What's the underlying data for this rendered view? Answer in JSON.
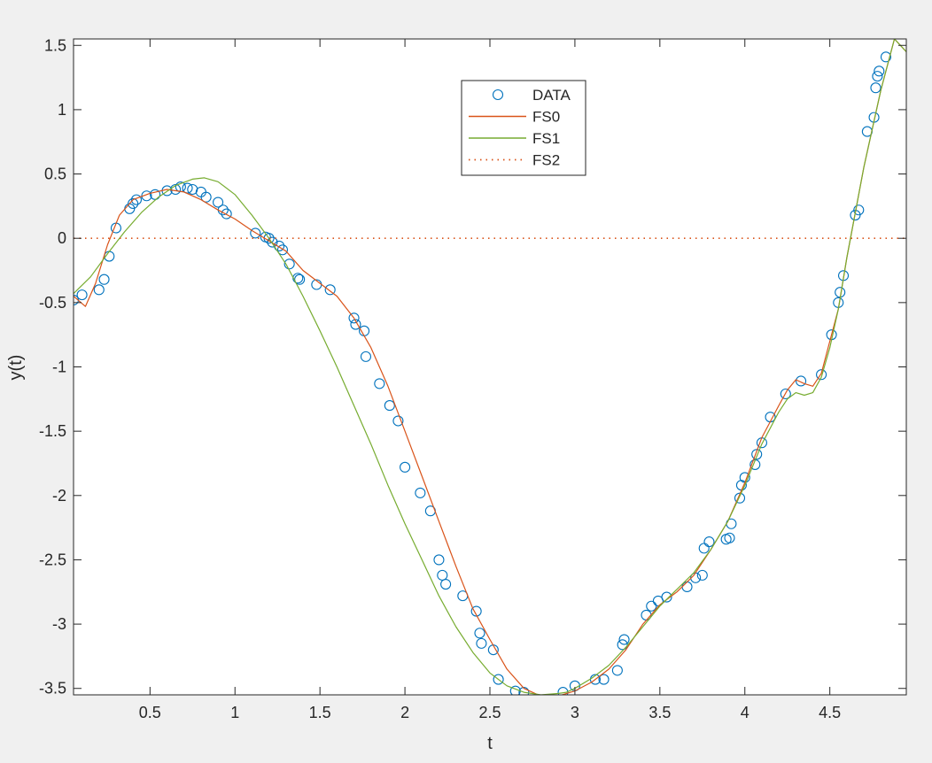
{
  "chart_data": {
    "type": "line",
    "title": "",
    "xlabel": "t",
    "ylabel": "y(t)",
    "xlim": [
      0.05,
      4.95
    ],
    "ylim": [
      -3.55,
      1.55
    ],
    "xticks": [
      "0.5",
      "1",
      "1.5",
      "2",
      "2.5",
      "3",
      "3.5",
      "4",
      "4.5"
    ],
    "xtick_values": [
      0.5,
      1,
      1.5,
      2,
      2.5,
      3,
      3.5,
      4,
      4.5
    ],
    "yticks": [
      "1.5",
      "1",
      "0.5",
      "0",
      "-0.5",
      "-1",
      "-1.5",
      "-2",
      "-2.5",
      "-3",
      "-3.5"
    ],
    "ytick_values": [
      1.5,
      1,
      0.5,
      0,
      -0.5,
      -1,
      -1.5,
      -2,
      -2.5,
      -3,
      -3.5
    ],
    "grid": false,
    "legend_position": "top-center",
    "series": [
      {
        "name": "DATA",
        "style": "markers",
        "marker": "circle",
        "color": "#0072BD",
        "x": [
          0.05,
          0.1,
          0.2,
          0.23,
          0.26,
          0.3,
          0.38,
          0.4,
          0.42,
          0.48,
          0.53,
          0.6,
          0.65,
          0.68,
          0.72,
          0.75,
          0.8,
          0.83,
          0.9,
          0.93,
          0.95,
          1.12,
          1.18,
          1.2,
          1.22,
          1.26,
          1.28,
          1.32,
          1.37,
          1.38,
          1.48,
          1.56,
          1.7,
          1.71,
          1.76,
          1.77,
          1.85,
          1.91,
          1.96,
          2.0,
          2.09,
          2.15,
          2.2,
          2.22,
          2.24,
          2.34,
          2.42,
          2.44,
          2.45,
          2.52,
          2.55,
          2.65,
          2.7,
          2.93,
          3.0,
          3.12,
          3.17,
          3.25,
          3.28,
          3.29,
          3.42,
          3.45,
          3.49,
          3.54,
          3.66,
          3.71,
          3.75,
          3.76,
          3.79,
          3.89,
          3.91,
          3.92,
          3.97,
          3.98,
          4.0,
          4.06,
          4.07,
          4.1,
          4.15,
          4.24,
          4.33,
          4.45,
          4.51,
          4.55,
          4.56,
          4.58,
          4.65,
          4.67,
          4.72,
          4.76,
          4.77,
          4.78,
          4.79,
          4.83
        ],
        "y": [
          -0.48,
          -0.44,
          -0.4,
          -0.32,
          -0.14,
          0.08,
          0.23,
          0.27,
          0.3,
          0.33,
          0.34,
          0.37,
          0.38,
          0.4,
          0.39,
          0.38,
          0.36,
          0.32,
          0.28,
          0.22,
          0.19,
          0.04,
          0.01,
          0.0,
          -0.03,
          -0.06,
          -0.09,
          -0.2,
          -0.31,
          -0.32,
          -0.36,
          -0.4,
          -0.62,
          -0.67,
          -0.72,
          -0.92,
          -1.13,
          -1.3,
          -1.42,
          -1.78,
          -1.98,
          -2.12,
          -2.5,
          -2.62,
          -2.69,
          -2.78,
          -2.9,
          -3.07,
          -3.15,
          -3.2,
          -3.43,
          -3.52,
          -3.53,
          -3.53,
          -3.48,
          -3.43,
          -3.43,
          -3.36,
          -3.16,
          -3.12,
          -2.93,
          -2.86,
          -2.82,
          -2.79,
          -2.71,
          -2.64,
          -2.62,
          -2.41,
          -2.36,
          -2.34,
          -2.33,
          -2.22,
          -2.02,
          -1.92,
          -1.86,
          -1.76,
          -1.68,
          -1.59,
          -1.39,
          -1.21,
          -1.11,
          -1.06,
          -0.75,
          -0.5,
          -0.42,
          -0.29,
          0.18,
          0.22,
          0.83,
          0.94,
          1.17,
          1.26,
          1.3,
          1.41
        ]
      },
      {
        "name": "FS0",
        "style": "line",
        "color": "#D95319",
        "x": [
          0.05,
          0.12,
          0.18,
          0.25,
          0.32,
          0.4,
          0.5,
          0.6,
          0.7,
          0.8,
          0.9,
          1.0,
          1.1,
          1.2,
          1.3,
          1.4,
          1.5,
          1.6,
          1.7,
          1.8,
          1.9,
          2.0,
          2.1,
          2.2,
          2.3,
          2.4,
          2.5,
          2.6,
          2.7,
          2.8,
          2.9,
          3.0,
          3.1,
          3.2,
          3.3,
          3.4,
          3.5,
          3.6,
          3.7,
          3.8,
          3.9,
          4.0,
          4.1,
          4.2,
          4.25,
          4.3,
          4.35,
          4.4,
          4.45,
          4.5,
          4.55,
          4.6,
          4.7,
          4.8,
          4.88,
          4.95
        ],
        "y": [
          -0.45,
          -0.53,
          -0.35,
          -0.05,
          0.18,
          0.3,
          0.35,
          0.38,
          0.36,
          0.3,
          0.22,
          0.15,
          0.06,
          -0.02,
          -0.1,
          -0.25,
          -0.35,
          -0.45,
          -0.62,
          -0.85,
          -1.15,
          -1.5,
          -1.85,
          -2.2,
          -2.55,
          -2.88,
          -3.12,
          -3.35,
          -3.5,
          -3.56,
          -3.56,
          -3.52,
          -3.45,
          -3.35,
          -3.2,
          -3.0,
          -2.85,
          -2.75,
          -2.62,
          -2.42,
          -2.2,
          -1.9,
          -1.55,
          -1.3,
          -1.18,
          -1.1,
          -1.13,
          -1.15,
          -1.05,
          -0.8,
          -0.55,
          -0.15,
          0.55,
          1.15,
          1.55,
          1.45
        ]
      },
      {
        "name": "FS1",
        "style": "line",
        "color": "#77AC30",
        "x": [
          0.05,
          0.15,
          0.25,
          0.35,
          0.45,
          0.55,
          0.65,
          0.75,
          0.82,
          0.9,
          1.0,
          1.1,
          1.2,
          1.3,
          1.4,
          1.5,
          1.6,
          1.7,
          1.8,
          1.9,
          2.0,
          2.1,
          2.2,
          2.3,
          2.4,
          2.5,
          2.6,
          2.7,
          2.8,
          2.9,
          2.95,
          3.0,
          3.1,
          3.2,
          3.3,
          3.4,
          3.5,
          3.6,
          3.7,
          3.8,
          3.9,
          4.0,
          4.1,
          4.2,
          4.25,
          4.3,
          4.35,
          4.4,
          4.45,
          4.5,
          4.55,
          4.6,
          4.7,
          4.8,
          4.88,
          4.95
        ],
        "y": [
          -0.43,
          -0.3,
          -0.12,
          0.05,
          0.2,
          0.32,
          0.41,
          0.46,
          0.47,
          0.44,
          0.34,
          0.18,
          0.0,
          -0.2,
          -0.45,
          -0.72,
          -1.0,
          -1.3,
          -1.6,
          -1.92,
          -2.22,
          -2.5,
          -2.78,
          -3.02,
          -3.22,
          -3.38,
          -3.48,
          -3.53,
          -3.55,
          -3.54,
          -3.53,
          -3.5,
          -3.42,
          -3.32,
          -3.18,
          -3.02,
          -2.86,
          -2.73,
          -2.6,
          -2.42,
          -2.2,
          -1.92,
          -1.6,
          -1.35,
          -1.25,
          -1.2,
          -1.22,
          -1.2,
          -1.08,
          -0.85,
          -0.55,
          -0.15,
          0.55,
          1.15,
          1.55,
          1.45
        ]
      },
      {
        "name": "FS2",
        "style": "dotted",
        "color": "#D95319",
        "x": [
          0.05,
          4.95
        ],
        "y": [
          0,
          0
        ]
      }
    ]
  }
}
